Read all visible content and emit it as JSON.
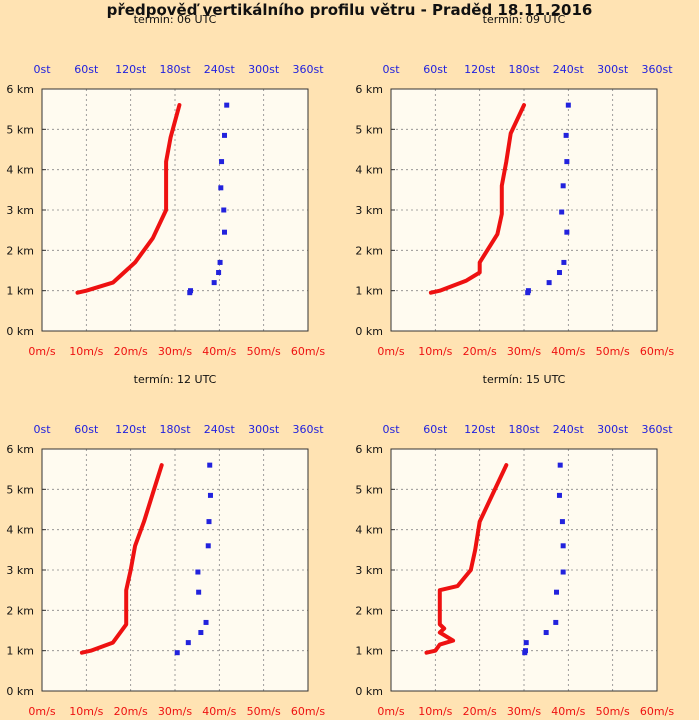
{
  "title": "předpověď vertikálního profilu větru - Praděd 18.11.2016",
  "chart_data": [
    {
      "type": "line",
      "title": "termín: 06 UTC",
      "y_ticks": [
        "0 km",
        "1 km",
        "2 km",
        "3 km",
        "4 km",
        "5 km",
        "6 km"
      ],
      "dir_ticks": [
        "0st",
        "60st",
        "120st",
        "180st",
        "240st",
        "300st",
        "360st"
      ],
      "speed_ticks": [
        "0m/s",
        "10m/s",
        "20m/s",
        "30m/s",
        "40m/s",
        "50m/s",
        "60m/s"
      ],
      "ylim": [
        0,
        6
      ],
      "dir_lim": [
        0,
        360
      ],
      "speed_lim": [
        0,
        60
      ],
      "grid": true,
      "series": [
        {
          "type": "line",
          "color": "#ee1111",
          "x_axis": "speed_bottom",
          "points": [
            [
              8,
              0.95
            ],
            [
              10,
              1.0
            ],
            [
              16,
              1.2
            ],
            [
              21,
              1.7
            ],
            [
              25,
              2.3
            ],
            [
              28,
              3.0
            ],
            [
              28,
              3.5
            ],
            [
              28,
              4.2
            ],
            [
              29,
              4.8
            ],
            [
              31,
              5.6
            ]
          ]
        },
        {
          "type": "scatter",
          "color": "#2222dd",
          "x_axis": "direction_top",
          "points": [
            [
              200,
              0.95
            ],
            [
              201,
              1.0
            ],
            [
              233,
              1.2
            ],
            [
              239,
              1.45
            ],
            [
              241,
              1.7
            ],
            [
              247,
              2.45
            ],
            [
              246,
              3.0
            ],
            [
              242,
              3.55
            ],
            [
              243,
              4.2
            ],
            [
              247,
              4.85
            ],
            [
              250,
              5.6
            ]
          ]
        }
      ]
    },
    {
      "type": "line",
      "title": "termín: 09 UTC",
      "y_ticks": [
        "0 km",
        "1 km",
        "2 km",
        "3 km",
        "4 km",
        "5 km",
        "6 km"
      ],
      "dir_ticks": [
        "0st",
        "60st",
        "120st",
        "180st",
        "240st",
        "300st",
        "360st"
      ],
      "speed_ticks": [
        "0m/s",
        "10m/s",
        "20m/s",
        "30m/s",
        "40m/s",
        "50m/s",
        "60m/s"
      ],
      "ylim": [
        0,
        6
      ],
      "dir_lim": [
        0,
        360
      ],
      "speed_lim": [
        0,
        60
      ],
      "grid": true,
      "series": [
        {
          "type": "line",
          "color": "#ee1111",
          "x_axis": "speed_bottom",
          "points": [
            [
              9,
              0.95
            ],
            [
              11,
              1.0
            ],
            [
              17,
              1.25
            ],
            [
              20,
              1.45
            ],
            [
              20,
              1.7
            ],
            [
              24,
              2.4
            ],
            [
              25,
              2.9
            ],
            [
              25,
              3.6
            ],
            [
              26,
              4.2
            ],
            [
              27,
              4.9
            ],
            [
              30,
              5.6
            ]
          ]
        },
        {
          "type": "scatter",
          "color": "#2222dd",
          "x_axis": "direction_top",
          "points": [
            [
              185,
              0.95
            ],
            [
              186,
              1.0
            ],
            [
              214,
              1.2
            ],
            [
              228,
              1.45
            ],
            [
              234,
              1.7
            ],
            [
              238,
              2.45
            ],
            [
              231,
              2.95
            ],
            [
              233,
              3.6
            ],
            [
              238,
              4.2
            ],
            [
              237,
              4.85
            ],
            [
              240,
              5.6
            ]
          ]
        }
      ]
    },
    {
      "type": "line",
      "title": "termín: 12 UTC",
      "y_ticks": [
        "0 km",
        "1 km",
        "2 km",
        "3 km",
        "4 km",
        "5 km",
        "6 km"
      ],
      "dir_ticks": [
        "0st",
        "60st",
        "120st",
        "180st",
        "240st",
        "300st",
        "360st"
      ],
      "speed_ticks": [
        "0m/s",
        "10m/s",
        "20m/s",
        "30m/s",
        "40m/s",
        "50m/s",
        "60m/s"
      ],
      "ylim": [
        0,
        6
      ],
      "dir_lim": [
        0,
        360
      ],
      "speed_lim": [
        0,
        60
      ],
      "grid": true,
      "series": [
        {
          "type": "line",
          "color": "#ee1111",
          "x_axis": "speed_bottom",
          "points": [
            [
              9,
              0.95
            ],
            [
              11,
              1.0
            ],
            [
              16,
              1.2
            ],
            [
              19,
              1.65
            ],
            [
              19,
              2.5
            ],
            [
              20,
              3.0
            ],
            [
              21,
              3.6
            ],
            [
              23,
              4.2
            ],
            [
              25,
              4.9
            ],
            [
              27,
              5.6
            ]
          ]
        },
        {
          "type": "scatter",
          "color": "#2222dd",
          "x_axis": "direction_top",
          "points": [
            [
              183,
              0.95
            ],
            [
              198,
              1.2
            ],
            [
              215,
              1.45
            ],
            [
              222,
              1.7
            ],
            [
              212,
              2.45
            ],
            [
              211,
              2.95
            ],
            [
              225,
              3.6
            ],
            [
              226,
              4.2
            ],
            [
              228,
              4.85
            ],
            [
              227,
              5.6
            ]
          ]
        }
      ]
    },
    {
      "type": "line",
      "title": "termín: 15 UTC",
      "y_ticks": [
        "0 km",
        "1 km",
        "2 km",
        "3 km",
        "4 km",
        "5 km",
        "6 km"
      ],
      "dir_ticks": [
        "0st",
        "60st",
        "120st",
        "180st",
        "240st",
        "300st",
        "360st"
      ],
      "speed_ticks": [
        "0m/s",
        "10m/s",
        "20m/s",
        "30m/s",
        "40m/s",
        "50m/s",
        "60m/s"
      ],
      "ylim": [
        0,
        6
      ],
      "dir_lim": [
        0,
        360
      ],
      "speed_lim": [
        0,
        60
      ],
      "grid": true,
      "series": [
        {
          "type": "line",
          "color": "#ee1111",
          "x_axis": "speed_bottom",
          "points": [
            [
              8,
              0.95
            ],
            [
              10,
              1.0
            ],
            [
              11,
              1.15
            ],
            [
              14,
              1.25
            ],
            [
              11,
              1.45
            ],
            [
              12,
              1.55
            ],
            [
              11,
              1.65
            ],
            [
              11,
              2.5
            ],
            [
              15,
              2.6
            ],
            [
              18,
              3.0
            ],
            [
              19,
              3.5
            ],
            [
              20,
              4.2
            ],
            [
              23,
              4.9
            ],
            [
              26,
              5.6
            ]
          ]
        },
        {
          "type": "scatter",
          "color": "#2222dd",
          "x_axis": "direction_top",
          "points": [
            [
              181,
              0.95
            ],
            [
              182,
              1.0
            ],
            [
              183,
              1.2
            ],
            [
              210,
              1.45
            ],
            [
              223,
              1.7
            ],
            [
              224,
              2.45
            ],
            [
              233,
              2.95
            ],
            [
              233,
              3.6
            ],
            [
              232,
              4.2
            ],
            [
              228,
              4.85
            ],
            [
              229,
              5.6
            ]
          ]
        }
      ]
    }
  ]
}
